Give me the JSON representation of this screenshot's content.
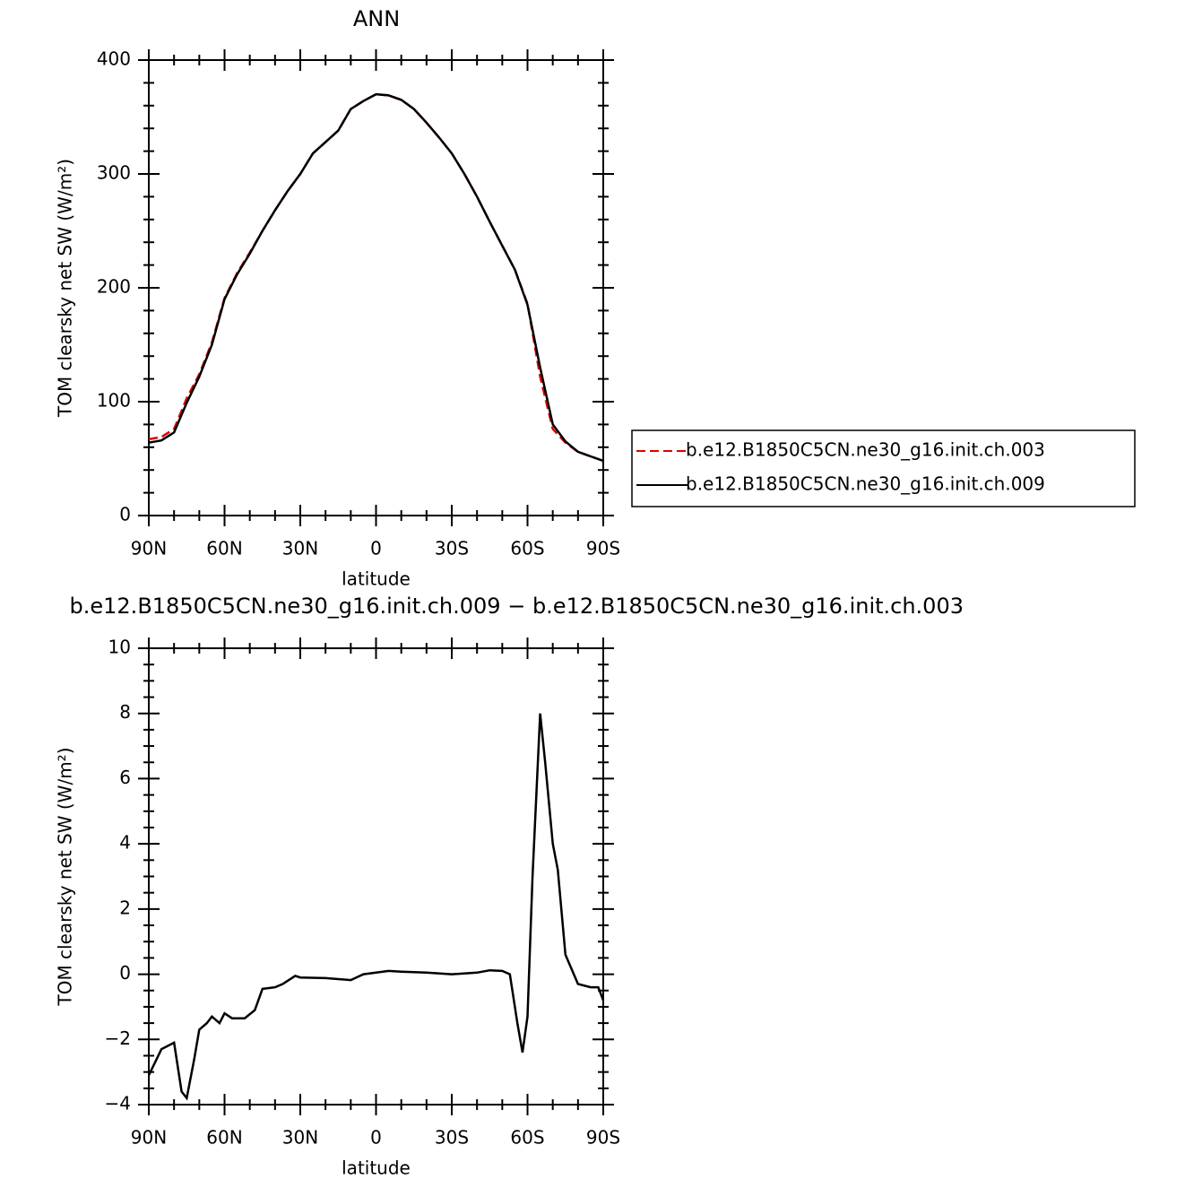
{
  "chart_data": [
    {
      "type": "line",
      "title": "ANN",
      "xlabel": "latitude",
      "ylabel": "TOM clearsky net SW (W/m²)",
      "x": [
        90,
        85,
        80,
        75,
        70,
        65,
        60,
        55,
        50,
        45,
        40,
        35,
        30,
        25,
        20,
        15,
        10,
        5,
        0,
        -5,
        -10,
        -15,
        -20,
        -25,
        -30,
        -35,
        -40,
        -45,
        -50,
        -55,
        -60,
        -65,
        -70,
        -75,
        -80,
        -85,
        -90
      ],
      "series": [
        {
          "name": "b.e12.B1850C5CN.ne30_g16.init.ch.003",
          "color": "#e00000",
          "dash": true,
          "values": [
            67,
            69,
            76,
            103,
            124,
            152,
            191,
            213,
            231,
            250,
            268,
            285,
            300,
            318,
            328,
            338,
            357,
            364,
            370,
            369,
            365,
            357,
            345,
            332,
            318,
            300,
            280,
            258,
            237,
            216,
            186,
            122,
            76,
            64,
            56,
            52,
            48
          ]
        },
        {
          "name": "b.e12.B1850C5CN.ne30_g16.init.ch.009",
          "color": "#000000",
          "dash": false,
          "values": [
            64,
            66,
            73,
            99,
            122,
            150,
            190,
            212,
            230,
            250,
            268,
            285,
            300,
            318,
            328,
            338,
            357,
            364,
            370,
            369,
            365,
            357,
            345,
            332,
            318,
            300,
            280,
            258,
            237,
            216,
            185,
            130,
            80,
            65,
            56,
            52,
            48
          ]
        }
      ],
      "xlim": [
        90,
        -90
      ],
      "xticks": [
        {
          "value": 90,
          "label": "90N"
        },
        {
          "value": 60,
          "label": "60N"
        },
        {
          "value": 30,
          "label": "30N"
        },
        0,
        {
          "value": -30,
          "label": "30S"
        },
        {
          "value": -60,
          "label": "60S"
        },
        {
          "value": -90,
          "label": "90S"
        }
      ],
      "ylim": [
        0,
        400
      ],
      "yticks": [
        0,
        100,
        200,
        300,
        400
      ],
      "legend": "right"
    },
    {
      "type": "line",
      "title": "b.e12.B1850C5CN.ne30_g16.init.ch.009 − b.e12.B1850C5CN.ne30_g16.init.ch.003",
      "xlabel": "latitude",
      "ylabel": "TOM clearsky net SW (W/m²)",
      "x": [
        90,
        85,
        80,
        77,
        75,
        72,
        70,
        67,
        65,
        62,
        60,
        57,
        52,
        48,
        45,
        40,
        37,
        32,
        30,
        20,
        10,
        5,
        0,
        -5,
        -10,
        -20,
        -30,
        -40,
        -45,
        -50,
        -53,
        -56,
        -58,
        -60,
        -62,
        -65,
        -67,
        -70,
        -72,
        -75,
        -80,
        -85,
        -88,
        -90
      ],
      "color": "#000000",
      "values": [
        -3.1,
        -2.3,
        -2.1,
        -3.6,
        -3.8,
        -2.6,
        -1.7,
        -1.5,
        -1.3,
        -1.5,
        -1.2,
        -1.35,
        -1.35,
        -1.1,
        -0.45,
        -0.4,
        -0.3,
        -0.05,
        -0.1,
        -0.12,
        -0.18,
        0,
        0.05,
        0.1,
        0.08,
        0.05,
        0,
        0.05,
        0.12,
        0.1,
        0,
        -1.5,
        -2.4,
        -1.3,
        3,
        8,
        6.5,
        4,
        3.2,
        0.6,
        -0.3,
        -0.4,
        -0.4,
        -0.8
      ],
      "xlim": [
        90,
        -90
      ],
      "xticks": [
        {
          "value": 90,
          "label": "90N"
        },
        {
          "value": 60,
          "label": "60N"
        },
        {
          "value": 30,
          "label": "30N"
        },
        0,
        {
          "value": -30,
          "label": "30S"
        },
        {
          "value": -60,
          "label": "60S"
        },
        {
          "value": -90,
          "label": "90S"
        }
      ],
      "ylim": [
        -4,
        10
      ],
      "yticks": [
        {
          "value": -4,
          "label": "−4"
        },
        {
          "value": -2,
          "label": "−2"
        },
        0,
        2,
        4,
        6,
        8,
        10
      ]
    }
  ]
}
